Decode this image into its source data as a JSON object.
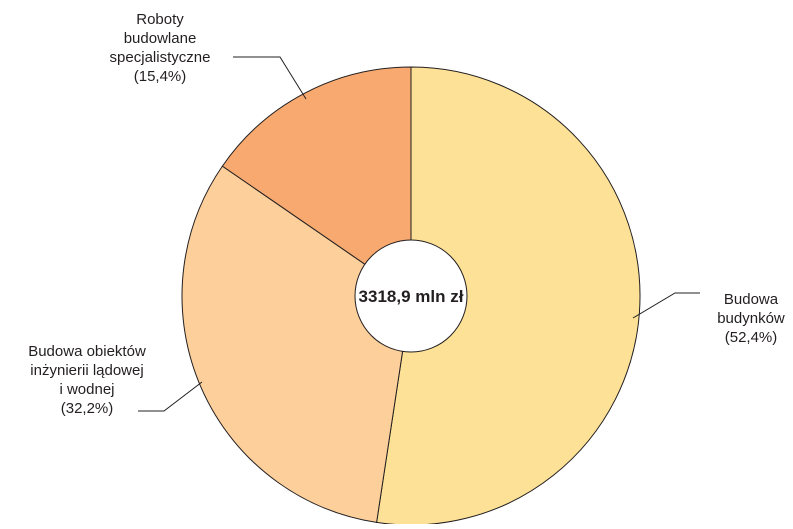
{
  "chart_data": {
    "type": "pie",
    "title": "",
    "center_label": "3318,9 mln zł",
    "slices": [
      {
        "label_lines": [
          "Budowa",
          "budynków",
          "(52,4%)"
        ],
        "value": 52.4,
        "color": "#fde196"
      },
      {
        "label_lines": [
          "Budowa obiektów",
          "inżynierii lądowej",
          "i wodnej",
          "(32,2%)"
        ],
        "value": 32.2,
        "color": "#fdcf9b"
      },
      {
        "label_lines": [
          "Roboty",
          "budowlane",
          "specjalistyczne",
          "(15,4%)"
        ],
        "value": 15.4,
        "color": "#f8a96f"
      }
    ]
  }
}
